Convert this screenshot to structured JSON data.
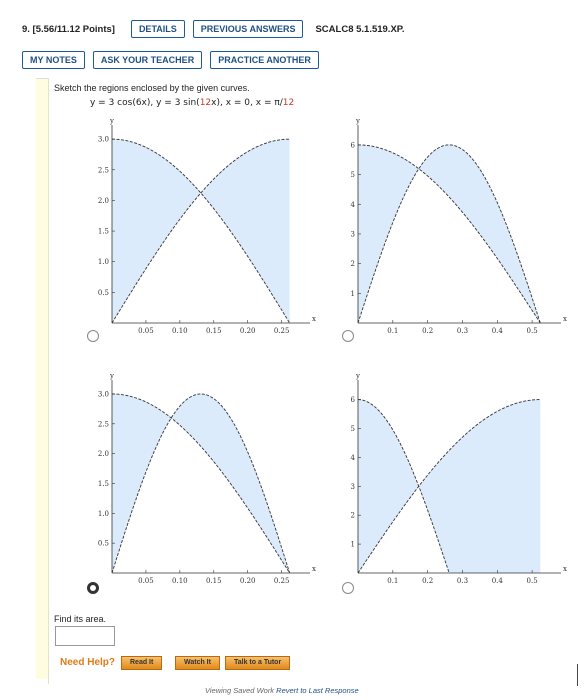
{
  "header": {
    "question": "9. [5.56/11.12 Points]",
    "details": "DETAILS",
    "previous_answers": "PREVIOUS ANSWERS",
    "reference": "SCALC8 5.1.519.XP.",
    "my_notes": "MY NOTES",
    "ask_teacher": "ASK YOUR TEACHER",
    "practice": "PRACTICE ANOTHER"
  },
  "problem": {
    "instruction": "Sketch the regions enclosed by the given curves.",
    "eq_a": "y = 3 cos(6x),  y = 3 sin(",
    "eq_red1": "12",
    "eq_b": "x),  x = 0,  x = π/",
    "eq_red2": "12"
  },
  "plots": [
    {
      "selected": false,
      "y_axis_label": "y",
      "x_axis_label": "x",
      "xticks": [
        "0.05",
        "0.10",
        "0.15",
        "0.20",
        "0.25"
      ],
      "yticks": [
        "0.5",
        "1.0",
        "1.5",
        "2.0",
        "2.5",
        "3.0"
      ]
    },
    {
      "selected": false,
      "y_axis_label": "y",
      "x_axis_label": "x",
      "xticks": [
        "0.1",
        "0.2",
        "0.3",
        "0.4",
        "0.5"
      ],
      "yticks": [
        "1",
        "2",
        "3",
        "4",
        "5",
        "6"
      ]
    },
    {
      "selected": true,
      "y_axis_label": "y",
      "x_axis_label": "x",
      "xticks": [
        "0.05",
        "0.10",
        "0.15",
        "0.20",
        "0.25"
      ],
      "yticks": [
        "0.5",
        "1.0",
        "1.5",
        "2.0",
        "2.5",
        "3.0"
      ]
    },
    {
      "selected": false,
      "y_axis_label": "y",
      "x_axis_label": "x",
      "xticks": [
        "0.1",
        "0.2",
        "0.3",
        "0.4",
        "0.5"
      ],
      "yticks": [
        "1",
        "2",
        "3",
        "4",
        "5",
        "6"
      ]
    }
  ],
  "answer": {
    "prompt": "Find its area.",
    "value": ""
  },
  "help": {
    "need_help": "Need Help?",
    "read": "Read It",
    "watch": "Watch It",
    "tutor": "Talk to a Tutor"
  },
  "footer": {
    "text": "Viewing Saved Work ",
    "revert": "Revert to Last Response"
  },
  "colors": {
    "fill": "#dcebfb",
    "curve": "#333333",
    "accent": "#e07b18",
    "link": "#1f4f84"
  }
}
